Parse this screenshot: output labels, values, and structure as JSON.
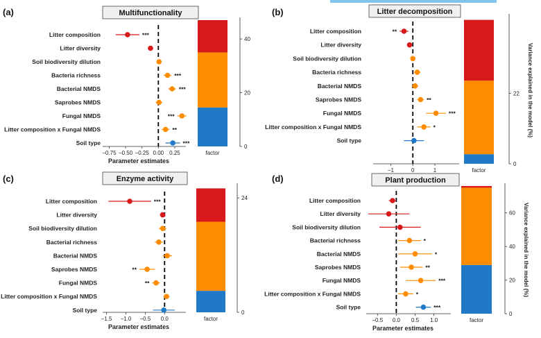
{
  "colors": {
    "litter": "#d7191c",
    "soil_biodiversity": "#ff8c00",
    "soil_type": "#1f78c8",
    "zero_line": "#000000"
  },
  "shared_labels": {
    "xlabel": "Parameter estimates",
    "factor_label": "factor",
    "variance_label": "Variance explained in the model (%)"
  },
  "chart_data": [
    {
      "id": "a",
      "panel_label": "(a)",
      "title": "Multifunctionality",
      "type": "scatter",
      "xlim": [
        -0.85,
        0.42
      ],
      "xticks": [
        -0.75,
        -0.5,
        -0.25,
        0.0,
        0.25
      ],
      "xtick_labels": [
        "−0.75",
        "−0.50",
        "−0.25",
        "0.00",
        "0.25"
      ],
      "variance_ticks": [
        0,
        20,
        40
      ],
      "variance_max": 47,
      "variance_stack": {
        "litter": 12,
        "soil_biodiversity": 20.5,
        "soil_type": 14.5
      },
      "show_variance_label": false,
      "rows": [
        {
          "label": "Litter composition",
          "est": -0.47,
          "lo": -0.65,
          "hi": -0.29,
          "group": "litter",
          "sig": "***",
          "sig_side": "right"
        },
        {
          "label": "Litter diversity",
          "est": -0.12,
          "lo": -0.16,
          "hi": -0.08,
          "group": "litter",
          "sig": "",
          "sig_side": "right"
        },
        {
          "label": "Soil biodiversity dilution",
          "est": 0.01,
          "lo": -0.03,
          "hi": 0.05,
          "group": "soil_biodiversity",
          "sig": "",
          "sig_side": "right"
        },
        {
          "label": "Bacteria richness",
          "est": 0.14,
          "lo": 0.08,
          "hi": 0.2,
          "group": "soil_biodiversity",
          "sig": "***",
          "sig_side": "right"
        },
        {
          "label": "Bacterial NMDS",
          "est": 0.21,
          "lo": 0.15,
          "hi": 0.27,
          "group": "soil_biodiversity",
          "sig": "***",
          "sig_side": "right"
        },
        {
          "label": "Saprobes NMDS",
          "est": 0.01,
          "lo": -0.04,
          "hi": 0.06,
          "group": "soil_biodiversity",
          "sig": "",
          "sig_side": "right"
        },
        {
          "label": "Fungal NMDS",
          "est": 0.36,
          "lo": 0.29,
          "hi": 0.43,
          "group": "soil_biodiversity",
          "sig": "***",
          "sig_side": "left"
        },
        {
          "label": "Litter composition x Fungal NMDS",
          "est": 0.11,
          "lo": 0.05,
          "hi": 0.17,
          "group": "soil_biodiversity",
          "sig": "**",
          "sig_side": "right"
        },
        {
          "label": "Soil type",
          "est": 0.22,
          "lo": 0.11,
          "hi": 0.33,
          "group": "soil_type",
          "sig": "***",
          "sig_side": "right"
        }
      ]
    },
    {
      "id": "b",
      "panel_label": "(b)",
      "title": "Litter decomposition",
      "type": "scatter",
      "xlim": [
        -1.8,
        2.1
      ],
      "xticks": [
        -1,
        0,
        1
      ],
      "xtick_labels": [
        "−1",
        "0",
        "1"
      ],
      "variance_ticks": [
        0,
        22
      ],
      "variance_max": 46,
      "variance_stack": {
        "litter": 19,
        "soil_biodiversity": 23,
        "soil_type": 3
      },
      "show_variance_label": true,
      "rows": [
        {
          "label": "Litter composition",
          "est": -0.4,
          "lo": -0.6,
          "hi": -0.2,
          "group": "litter",
          "sig": "**",
          "sig_side": "left"
        },
        {
          "label": "Litter diversity",
          "est": -0.15,
          "lo": -0.25,
          "hi": -0.05,
          "group": "litter",
          "sig": "",
          "sig_side": "right"
        },
        {
          "label": "Soil biodiversity dilution",
          "est": 0.0,
          "lo": -0.1,
          "hi": 0.1,
          "group": "soil_biodiversity",
          "sig": "",
          "sig_side": "right"
        },
        {
          "label": "Bacteria richness",
          "est": 0.2,
          "lo": 0.05,
          "hi": 0.35,
          "group": "soil_biodiversity",
          "sig": "",
          "sig_side": "right"
        },
        {
          "label": "Bacterial NMDS",
          "est": 0.1,
          "lo": -0.05,
          "hi": 0.25,
          "group": "soil_biodiversity",
          "sig": "",
          "sig_side": "right"
        },
        {
          "label": "Saprobes NMDS",
          "est": 0.35,
          "lo": 0.2,
          "hi": 0.5,
          "group": "soil_biodiversity",
          "sig": "**",
          "sig_side": "right"
        },
        {
          "label": "Fungal NMDS",
          "est": 1.05,
          "lo": 0.6,
          "hi": 1.5,
          "group": "soil_biodiversity",
          "sig": "***",
          "sig_side": "right"
        },
        {
          "label": "Litter composition x Fungal NMDS",
          "est": 0.5,
          "lo": 0.2,
          "hi": 0.8,
          "group": "soil_biodiversity",
          "sig": "*",
          "sig_side": "right"
        },
        {
          "label": "Soil type",
          "est": 0.05,
          "lo": -0.4,
          "hi": 0.5,
          "group": "soil_type",
          "sig": "",
          "sig_side": "right"
        }
      ]
    },
    {
      "id": "c",
      "panel_label": "(c)",
      "title": "Enzyme activity",
      "type": "scatter",
      "xlim": [
        -1.6,
        0.55
      ],
      "xticks": [
        -1.5,
        -1.0,
        -0.5,
        0.0
      ],
      "xtick_labels": [
        "−1.5",
        "−1.0",
        "−0.5",
        "0.0"
      ],
      "variance_ticks": [
        0,
        24
      ],
      "variance_max": 26.5,
      "variance_stack": {
        "litter": 7,
        "soil_biodiversity": 14.5,
        "soil_type": 4.5
      },
      "show_variance_label": false,
      "rows": [
        {
          "label": "Litter composition",
          "est": -0.9,
          "lo": -1.45,
          "hi": -0.35,
          "group": "litter",
          "sig": "***",
          "sig_side": "right"
        },
        {
          "label": "Litter diversity",
          "est": -0.05,
          "lo": -0.12,
          "hi": 0.02,
          "group": "litter",
          "sig": "",
          "sig_side": "right"
        },
        {
          "label": "Soil biodiversity dilution",
          "est": -0.05,
          "lo": -0.15,
          "hi": 0.05,
          "group": "soil_biodiversity",
          "sig": "",
          "sig_side": "right"
        },
        {
          "label": "Bacterial richness",
          "est": -0.15,
          "lo": -0.25,
          "hi": -0.05,
          "group": "soil_biodiversity",
          "sig": "",
          "sig_side": "right"
        },
        {
          "label": "Bacterial NMDS",
          "est": 0.07,
          "lo": -0.05,
          "hi": 0.19,
          "group": "soil_biodiversity",
          "sig": "",
          "sig_side": "right"
        },
        {
          "label": "Saprobes NMDS",
          "est": -0.45,
          "lo": -0.65,
          "hi": -0.25,
          "group": "soil_biodiversity",
          "sig": "**",
          "sig_side": "left"
        },
        {
          "label": "Fungal NMDS",
          "est": -0.22,
          "lo": -0.32,
          "hi": -0.12,
          "group": "soil_biodiversity",
          "sig": "**",
          "sig_side": "left"
        },
        {
          "label": "Litter composition x Fungal NMDS",
          "est": 0.05,
          "lo": -0.03,
          "hi": 0.13,
          "group": "soil_biodiversity",
          "sig": "",
          "sig_side": "right"
        },
        {
          "label": "Soil type",
          "est": -0.02,
          "lo": -0.3,
          "hi": 0.26,
          "group": "soil_type",
          "sig": "",
          "sig_side": "right"
        }
      ]
    },
    {
      "id": "d",
      "panel_label": "(d)",
      "title": "Plant production",
      "type": "scatter",
      "xlim": [
        -0.8,
        1.45
      ],
      "xticks": [
        -0.5,
        0.0,
        0.5,
        1.0
      ],
      "xtick_labels": [
        "−0.5",
        "0.0",
        "0.5",
        "1.0"
      ],
      "variance_ticks": [
        0,
        20,
        40,
        60
      ],
      "variance_max": 76,
      "variance_stack": {
        "litter": 1,
        "soil_biodiversity": 46,
        "soil_type": 29
      },
      "show_variance_label": true,
      "rows": [
        {
          "label": "Litter composition",
          "est": -0.1,
          "lo": -0.2,
          "hi": 0.0,
          "group": "litter",
          "sig": "",
          "sig_side": "right"
        },
        {
          "label": "Litter diversity",
          "est": -0.2,
          "lo": -0.75,
          "hi": 0.35,
          "group": "litter",
          "sig": "",
          "sig_side": "right"
        },
        {
          "label": "Soil biodiversity dilution",
          "est": 0.1,
          "lo": -0.45,
          "hi": 0.65,
          "group": "litter",
          "sig": "",
          "sig_side": "right"
        },
        {
          "label": "Bacterial richness",
          "est": 0.35,
          "lo": 0.05,
          "hi": 0.65,
          "group": "soil_biodiversity",
          "sig": "*",
          "sig_side": "right"
        },
        {
          "label": "Bacterial NMDS",
          "est": 0.5,
          "lo": 0.05,
          "hi": 0.95,
          "group": "soil_biodiversity",
          "sig": "*",
          "sig_side": "right"
        },
        {
          "label": "Saprobes NMDS",
          "est": 0.4,
          "lo": 0.1,
          "hi": 0.7,
          "group": "soil_biodiversity",
          "sig": "**",
          "sig_side": "right"
        },
        {
          "label": "Fungal NMDS",
          "est": 0.65,
          "lo": 0.25,
          "hi": 1.05,
          "group": "soil_biodiversity",
          "sig": "***",
          "sig_side": "right"
        },
        {
          "label": "Litter composition x Fungal NMDS",
          "est": 0.25,
          "lo": 0.05,
          "hi": 0.45,
          "group": "soil_biodiversity",
          "sig": "*",
          "sig_side": "right"
        },
        {
          "label": "Soil type",
          "est": 0.72,
          "lo": 0.52,
          "hi": 0.92,
          "group": "soil_type",
          "sig": "***",
          "sig_side": "right"
        }
      ]
    }
  ]
}
